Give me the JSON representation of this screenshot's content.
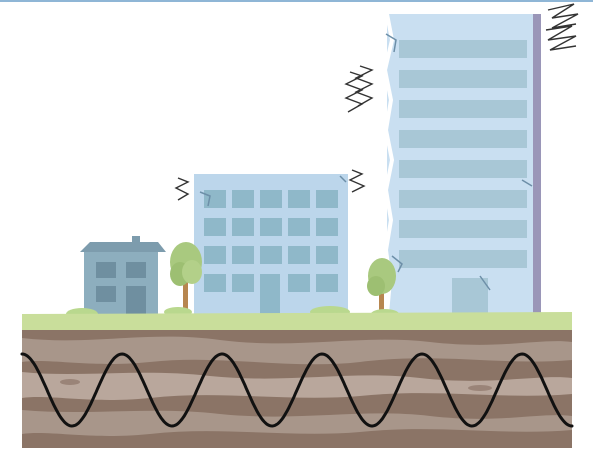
{
  "scene": {
    "description_free": true,
    "colors": {
      "sky": "#ffffff",
      "building_light": "#c9dff1",
      "building_mid": "#a7c5de",
      "window": "#8fb8c9",
      "tower_shadow": "#9a96b8",
      "house": "#8daebe",
      "house_roof": "#7d9cad",
      "grass": "#c9de9b",
      "tree_leaf": "#a9c97f",
      "trunk": "#b7864f",
      "soil_dark": "#8b7466",
      "soil_mid": "#a8968a",
      "soil_light": "#b9a79c",
      "wave": "#111111",
      "crack": "#6d8fa8"
    },
    "icons": [
      "shake-lines-icon",
      "crack-icon",
      "seismic-wave-icon",
      "tree-icon",
      "house-icon",
      "building-icon",
      "tower-icon"
    ]
  }
}
